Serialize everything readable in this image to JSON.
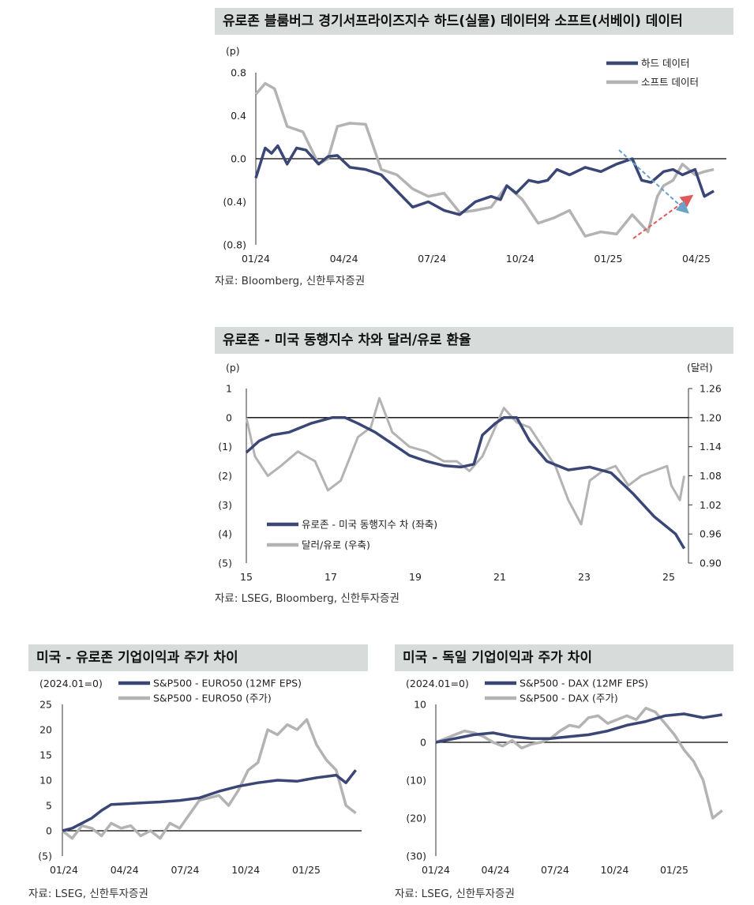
{
  "colors": {
    "navy": "#3a4675",
    "gray": "#b3b3b3",
    "title_bg": "#d7dbd9",
    "red_arrow": "#e15a5a",
    "blue_arrow": "#6aa2c8"
  },
  "charts": [
    {
      "title": "유로존 블룸버그 경기서프라이즈지수 하드(실물) 데이터와 소프트(서베이) 데이터",
      "source": "자료: Bloomberg, 신한투자증권",
      "chart_data": {
        "type": "line",
        "unit_label": "(p)",
        "ylim": [
          -0.8,
          0.8
        ],
        "yticks": [
          "0.8",
          "0.4",
          "0.0",
          "(0.4)",
          "(0.8)"
        ],
        "xticks": [
          "01/24",
          "04/24",
          "07/24",
          "10/24",
          "01/25",
          "04/25"
        ],
        "x_range": [
          0,
          15
        ],
        "legend": "top-right",
        "series": [
          {
            "name": "하드 데이터",
            "color": "#3a4675",
            "x": [
              0,
              0.3,
              0.5,
              0.7,
              1.0,
              1.3,
              1.6,
              2.0,
              2.3,
              2.6,
              3.0,
              3.5,
              4.0,
              4.5,
              5.0,
              5.5,
              6.0,
              6.5,
              7.0,
              7.5,
              7.8,
              8.0,
              8.3,
              8.7,
              9.0,
              9.3,
              9.6,
              10.0,
              10.5,
              11.0,
              11.5,
              12.0,
              12.3,
              12.6,
              13.0,
              13.3,
              13.6,
              14.0,
              14.3,
              14.6
            ],
            "y": [
              -0.18,
              0.1,
              0.05,
              0.12,
              -0.05,
              0.1,
              0.08,
              -0.05,
              0.02,
              0.03,
              -0.08,
              -0.1,
              -0.15,
              -0.3,
              -0.45,
              -0.4,
              -0.48,
              -0.52,
              -0.4,
              -0.35,
              -0.38,
              -0.25,
              -0.32,
              -0.2,
              -0.22,
              -0.2,
              -0.1,
              -0.15,
              -0.08,
              -0.12,
              -0.05,
              0.0,
              -0.2,
              -0.22,
              -0.12,
              -0.1,
              -0.15,
              -0.1,
              -0.35,
              -0.3
            ]
          },
          {
            "name": "소프트 데이터",
            "color": "#b3b3b3",
            "x": [
              0,
              0.3,
              0.6,
              1.0,
              1.5,
              2.0,
              2.3,
              2.6,
              3.0,
              3.5,
              4.0,
              4.5,
              5.0,
              5.5,
              6.0,
              6.5,
              7.0,
              7.5,
              8.0,
              8.5,
              9.0,
              9.5,
              10.0,
              10.5,
              11.0,
              11.5,
              12.0,
              12.5,
              12.8,
              13.0,
              13.3,
              13.6,
              14.0,
              14.3,
              14.6
            ],
            "y": [
              0.6,
              0.7,
              0.65,
              0.3,
              0.25,
              -0.05,
              0.0,
              0.3,
              0.33,
              0.32,
              -0.1,
              -0.15,
              -0.28,
              -0.35,
              -0.32,
              -0.5,
              -0.48,
              -0.45,
              -0.25,
              -0.38,
              -0.6,
              -0.55,
              -0.48,
              -0.72,
              -0.68,
              -0.7,
              -0.52,
              -0.68,
              -0.35,
              -0.25,
              -0.2,
              -0.05,
              -0.15,
              -0.12,
              -0.1
            ]
          }
        ]
      }
    },
    {
      "title": "유로존 - 미국 동행지수 차와 달러/유로 환율",
      "source": "자료: LSEG, Bloomberg, 신한투자증권",
      "chart_data": {
        "type": "line",
        "left_unit_label": "(p)",
        "right_unit_label": "(달러)",
        "ylim_left": [
          -5,
          1
        ],
        "ylim_right": [
          0.9,
          1.26
        ],
        "yticks_left": [
          "1",
          "0",
          "(1)",
          "(2)",
          "(3)",
          "(4)",
          "(5)"
        ],
        "yticks_right": [
          "1.26",
          "1.20",
          "1.14",
          "1.08",
          "1.02",
          "0.96",
          "0.90"
        ],
        "xticks": [
          "15",
          "17",
          "19",
          "21",
          "23",
          "25"
        ],
        "x_range": [
          2015,
          2025.3
        ],
        "legend": "bottom-left",
        "series": [
          {
            "name": "유로존 - 미국 동행지수 차 (좌축)",
            "axis": "left",
            "color": "#3a4675",
            "x": [
              2015.0,
              2015.3,
              2015.6,
              2016.0,
              2016.5,
              2017.0,
              2017.3,
              2017.6,
              2018.0,
              2018.4,
              2018.8,
              2019.2,
              2019.6,
              2020.0,
              2020.3,
              2020.5,
              2020.8,
              2021.0,
              2021.3,
              2021.6,
              2022.0,
              2022.5,
              2023.0,
              2023.5,
              2024.0,
              2024.5,
              2025.0,
              2025.2
            ],
            "y": [
              -1.2,
              -0.8,
              -0.6,
              -0.5,
              -0.2,
              0.0,
              0.0,
              -0.2,
              -0.5,
              -0.9,
              -1.3,
              -1.5,
              -1.65,
              -1.7,
              -1.6,
              -0.6,
              -0.2,
              0.0,
              0.0,
              -0.8,
              -1.5,
              -1.8,
              -1.7,
              -1.9,
              -2.6,
              -3.4,
              -4.0,
              -4.5
            ]
          },
          {
            "name": "달러/유로 (우축)",
            "axis": "right",
            "color": "#b3b3b3",
            "x": [
              2015.0,
              2015.2,
              2015.5,
              2015.8,
              2016.2,
              2016.6,
              2016.9,
              2017.2,
              2017.6,
              2017.9,
              2018.1,
              2018.4,
              2018.8,
              2019.2,
              2019.6,
              2019.9,
              2020.2,
              2020.5,
              2020.8,
              2021.0,
              2021.3,
              2021.6,
              2021.9,
              2022.2,
              2022.5,
              2022.8,
              2023.0,
              2023.3,
              2023.6,
              2023.9,
              2024.2,
              2024.5,
              2024.8,
              2024.9,
              2025.1,
              2025.2
            ],
            "y": [
              1.2,
              1.12,
              1.08,
              1.1,
              1.13,
              1.11,
              1.05,
              1.07,
              1.16,
              1.18,
              1.24,
              1.17,
              1.14,
              1.13,
              1.11,
              1.11,
              1.09,
              1.12,
              1.18,
              1.22,
              1.19,
              1.18,
              1.14,
              1.1,
              1.03,
              0.98,
              1.07,
              1.09,
              1.1,
              1.06,
              1.08,
              1.09,
              1.1,
              1.06,
              1.03,
              1.08
            ]
          }
        ]
      }
    },
    {
      "title": "미국 - 유로존 기업이익과 주가 차이",
      "source": "자료: LSEG, 신한투자증권",
      "chart_data": {
        "type": "line",
        "unit_label": "(2024.01=0)",
        "ylim": [
          -5,
          25
        ],
        "yticks": [
          "25",
          "20",
          "15",
          "10",
          "5",
          "0",
          "(5)"
        ],
        "xticks": [
          "01/24",
          "04/24",
          "07/24",
          "10/24",
          "01/25"
        ],
        "x_range": [
          0,
          15.3
        ],
        "legend": "top",
        "series": [
          {
            "name": "S&P500 - EURO50 (12MF EPS)",
            "color": "#3a4675",
            "x": [
              0,
              0.5,
              1.0,
              1.5,
              2.0,
              2.5,
              3.0,
              4.0,
              5.0,
              6.0,
              7.0,
              8.0,
              9.0,
              10.0,
              11.0,
              12.0,
              13.0,
              14.0,
              14.5,
              15.0
            ],
            "y": [
              0,
              0.5,
              1.5,
              2.5,
              4.0,
              5.2,
              5.3,
              5.5,
              5.7,
              6.0,
              6.5,
              7.8,
              8.8,
              9.5,
              10.0,
              9.8,
              10.5,
              11.0,
              9.5,
              12.0
            ]
          },
          {
            "name": "S&P500 - EURO50 (주가)",
            "color": "#b3b3b3",
            "x": [
              0,
              0.5,
              1.0,
              1.5,
              2.0,
              2.5,
              3.0,
              3.5,
              4.0,
              4.5,
              5.0,
              5.5,
              6.0,
              7.0,
              8.0,
              8.5,
              9.0,
              9.5,
              10.0,
              10.5,
              11.0,
              11.5,
              12.0,
              12.5,
              13.0,
              13.5,
              14.0,
              14.5,
              15.0
            ],
            "y": [
              0,
              -1.5,
              1.0,
              0.5,
              -1.0,
              1.5,
              0.5,
              1.0,
              -1.0,
              0.0,
              -1.5,
              1.5,
              0.5,
              6.0,
              7.0,
              5.0,
              8.0,
              12.0,
              13.5,
              20.0,
              19.0,
              21.0,
              20.0,
              22.0,
              17.0,
              14.0,
              12.0,
              5.0,
              3.5
            ]
          }
        ]
      }
    },
    {
      "title": "미국 - 독일 기업이익과 주가 차이",
      "source": "자료: LSEG, 신한투자증권",
      "chart_data": {
        "type": "line",
        "unit_label": "(2024.01=0)",
        "ylim": [
          -30,
          10
        ],
        "yticks": [
          "10",
          "0",
          "(10)",
          "(20)",
          "(30)"
        ],
        "xticks": [
          "01/24",
          "04/24",
          "07/24",
          "10/24",
          "01/25"
        ],
        "x_range": [
          0,
          15.3
        ],
        "legend": "top",
        "series": [
          {
            "name": "S&P500 - DAX (12MF EPS)",
            "color": "#3a4675",
            "x": [
              0,
              1.0,
              2.0,
              3.0,
              4.0,
              5.0,
              6.0,
              7.0,
              8.0,
              9.0,
              10.0,
              11.0,
              12.0,
              13.0,
              14.0,
              15.0
            ],
            "y": [
              0,
              1.0,
              2.0,
              2.5,
              1.5,
              1.0,
              1.0,
              1.5,
              2.0,
              3.0,
              4.5,
              5.5,
              7.0,
              7.5,
              6.5,
              7.3
            ]
          },
          {
            "name": "S&P500 - DAX (주가)",
            "color": "#b3b3b3",
            "x": [
              0,
              0.5,
              1.0,
              1.5,
              2.0,
              2.5,
              3.0,
              3.5,
              4.0,
              4.5,
              5.0,
              5.5,
              6.0,
              6.5,
              7.0,
              7.5,
              8.0,
              8.5,
              9.0,
              9.5,
              10.0,
              10.5,
              11.0,
              11.5,
              12.0,
              12.5,
              13.0,
              13.5,
              14.0,
              14.5,
              15.0
            ],
            "y": [
              0,
              1.0,
              2.0,
              3.0,
              2.5,
              1.5,
              0.0,
              -1.0,
              0.5,
              -1.5,
              -0.5,
              0.0,
              1.0,
              3.0,
              4.5,
              4.0,
              6.5,
              7.0,
              5.0,
              6.0,
              7.0,
              6.0,
              9.0,
              8.0,
              5.0,
              2.0,
              -2.0,
              -5.0,
              -10.0,
              -20.0,
              -18.0
            ]
          }
        ]
      }
    }
  ]
}
